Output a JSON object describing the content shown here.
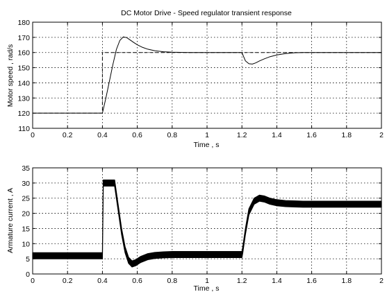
{
  "chart_data": [
    {
      "type": "line",
      "title": "DC Motor Drive  -  Speed regulator transient response",
      "xlabel": "Time , s",
      "ylabel": "Motor speed , rad/s",
      "xlim": [
        0,
        2
      ],
      "ylim": [
        110,
        180
      ],
      "xticks": [
        0,
        0.2,
        0.4,
        0.6,
        0.8,
        1,
        1.2,
        1.4,
        1.6,
        1.8,
        2
      ],
      "yticks": [
        110,
        120,
        130,
        140,
        150,
        160,
        170,
        180
      ],
      "grid": true,
      "series": [
        {
          "role": "reference",
          "style": "dashed",
          "x": [
            0,
            0.4,
            0.4,
            1.2,
            1.2,
            2.0
          ],
          "y": [
            120,
            120,
            160,
            160,
            160,
            160
          ]
        },
        {
          "role": "response",
          "style": "solid",
          "x": [
            0,
            0.4,
            0.42,
            0.44,
            0.46,
            0.48,
            0.5,
            0.52,
            0.54,
            0.56,
            0.58,
            0.6,
            0.63,
            0.66,
            0.7,
            0.75,
            0.8,
            0.85,
            0.9,
            1.0,
            1.1,
            1.2,
            1.21,
            1.22,
            1.24,
            1.26,
            1.28,
            1.3,
            1.33,
            1.36,
            1.4,
            1.45,
            1.5,
            1.55,
            1.6,
            1.7,
            1.8,
            1.9,
            2.0
          ],
          "y": [
            120,
            120,
            130,
            141,
            152,
            162,
            168,
            170.3,
            169.8,
            168.2,
            166.6,
            165.1,
            163.4,
            162.2,
            161.2,
            160.5,
            160.2,
            160.1,
            160,
            160,
            160,
            160,
            157.2,
            154.5,
            152.6,
            152.4,
            153.2,
            154.4,
            155.9,
            157.2,
            158.4,
            159.3,
            159.8,
            160,
            160,
            160,
            160,
            160,
            160
          ]
        }
      ]
    },
    {
      "type": "line",
      "title": "",
      "xlabel": "Time , s",
      "ylabel": "Armature current , A",
      "xlim": [
        0,
        2
      ],
      "ylim": [
        0,
        35
      ],
      "xticks": [
        0,
        0.2,
        0.4,
        0.6,
        0.8,
        1,
        1.2,
        1.4,
        1.6,
        1.8,
        2
      ],
      "yticks": [
        0,
        5,
        10,
        15,
        20,
        25,
        30,
        35
      ],
      "grid": true,
      "ripple_band_A": 2,
      "series": [
        {
          "role": "current",
          "style": "thick-band",
          "x": [
            0,
            0.4,
            0.405,
            0.47,
            0.49,
            0.51,
            0.53,
            0.55,
            0.57,
            0.59,
            0.62,
            0.66,
            0.7,
            0.75,
            0.8,
            1.0,
            1.2,
            1.205,
            1.22,
            1.24,
            1.27,
            1.3,
            1.33,
            1.36,
            1.4,
            1.45,
            1.5,
            1.55,
            1.6,
            1.8,
            2.0
          ],
          "y": [
            6,
            6,
            30,
            30,
            22,
            14,
            8,
            4.5,
            3.3,
            3.7,
            4.8,
            5.7,
            6.1,
            6.3,
            6.4,
            6.4,
            6.4,
            8,
            14,
            20.5,
            24,
            25,
            24.7,
            24,
            23.5,
            23.2,
            23.1,
            23,
            23,
            23,
            23
          ]
        }
      ]
    }
  ]
}
